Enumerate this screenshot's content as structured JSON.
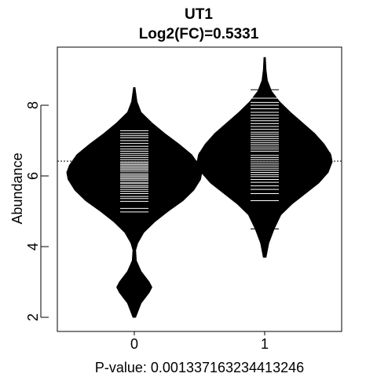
{
  "chart_data": {
    "type": "beanplot",
    "title": "UT1",
    "subtitle": "Log2(FC)=0.5331",
    "xlabel": "P-value: 0.00133716323441​3246",
    "ylabel": "Abundance",
    "categories": [
      "0",
      "1"
    ],
    "yticks": [
      "2",
      "4",
      "6",
      "8"
    ],
    "ylim": [
      1.8,
      9.8
    ],
    "overall_mean": 6.42,
    "colors": {
      "fill": "#000000",
      "lines": "#ffffff",
      "frame": "#000000"
    },
    "groups": [
      {
        "category": "0",
        "mean": 6.1,
        "density": [
          [
            2.0,
            0.02
          ],
          [
            2.4,
            0.1
          ],
          [
            2.7,
            0.22
          ],
          [
            2.85,
            0.26
          ],
          [
            3.0,
            0.22
          ],
          [
            3.3,
            0.1
          ],
          [
            3.6,
            0.03
          ],
          [
            3.9,
            0.02
          ],
          [
            4.1,
            0.05
          ],
          [
            4.4,
            0.14
          ],
          [
            4.7,
            0.3
          ],
          [
            5.0,
            0.5
          ],
          [
            5.3,
            0.72
          ],
          [
            5.6,
            0.88
          ],
          [
            5.9,
            0.98
          ],
          [
            6.1,
            1.0
          ],
          [
            6.3,
            0.96
          ],
          [
            6.6,
            0.85
          ],
          [
            6.9,
            0.66
          ],
          [
            7.2,
            0.45
          ],
          [
            7.5,
            0.26
          ],
          [
            7.8,
            0.1
          ],
          [
            8.1,
            0.04
          ],
          [
            8.5,
            0.01
          ]
        ],
        "points": [
          2.84,
          4.98,
          5.08,
          5.28,
          5.36,
          5.42,
          5.5,
          5.56,
          5.62,
          5.68,
          5.72,
          5.78,
          5.82,
          5.88,
          5.92,
          5.96,
          6.0,
          6.04,
          6.08,
          6.12,
          6.16,
          6.2,
          6.24,
          6.28,
          6.32,
          6.36,
          6.4,
          6.46,
          6.52,
          6.58,
          6.64,
          6.7,
          6.76,
          6.84,
          6.92,
          7.0,
          7.08,
          7.14,
          7.2,
          7.28
        ],
        "outer_points": [
          2.84
        ]
      },
      {
        "category": "1",
        "mean": 6.64,
        "density": [
          [
            3.7,
            0.02
          ],
          [
            4.1,
            0.06
          ],
          [
            4.5,
            0.14
          ],
          [
            4.9,
            0.24
          ],
          [
            5.2,
            0.4
          ],
          [
            5.5,
            0.6
          ],
          [
            5.8,
            0.8
          ],
          [
            6.1,
            0.94
          ],
          [
            6.4,
            1.0
          ],
          [
            6.6,
            0.98
          ],
          [
            6.9,
            0.88
          ],
          [
            7.2,
            0.74
          ],
          [
            7.5,
            0.56
          ],
          [
            7.8,
            0.38
          ],
          [
            8.1,
            0.22
          ],
          [
            8.4,
            0.1
          ],
          [
            8.7,
            0.04
          ],
          [
            9.0,
            0.02
          ],
          [
            9.35,
            0.01
          ]
        ],
        "points": [
          4.5,
          4.92,
          5.12,
          5.3,
          5.5,
          5.62,
          5.72,
          5.82,
          5.9,
          5.98,
          6.04,
          6.1,
          6.16,
          6.22,
          6.28,
          6.34,
          6.4,
          6.46,
          6.52,
          6.58,
          6.64,
          6.7,
          6.76,
          6.82,
          6.88,
          6.94,
          7.0,
          7.06,
          7.12,
          7.18,
          7.24,
          7.32,
          7.4,
          7.48,
          7.56,
          7.64,
          7.72,
          7.8,
          7.9,
          8.0,
          8.08,
          8.2,
          8.44
        ],
        "outer_points": [
          4.5,
          4.92,
          5.12,
          8.44
        ]
      }
    ]
  }
}
